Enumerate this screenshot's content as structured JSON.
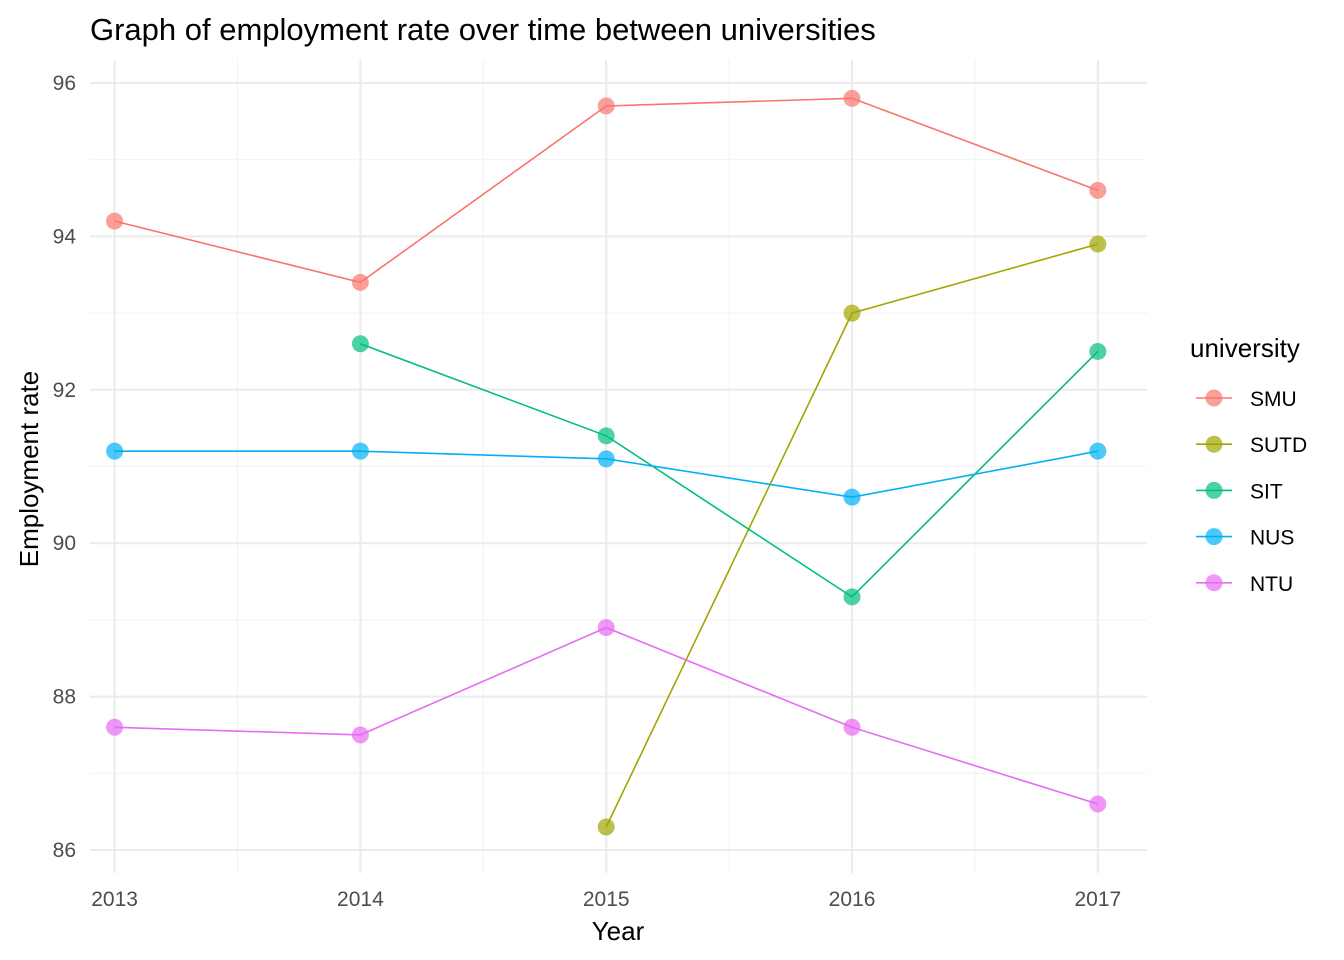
{
  "chart_data": {
    "type": "line",
    "title": "Graph of employment rate over time between universities",
    "xlabel": "Year",
    "ylabel": "Employment rate",
    "x": [
      2013,
      2014,
      2015,
      2016,
      2017
    ],
    "xlim": [
      2012.9,
      2017.2
    ],
    "ylim": [
      85.7,
      96.3
    ],
    "yticks": [
      86,
      88,
      90,
      92,
      94,
      96
    ],
    "grid": true,
    "legend": {
      "title": "university",
      "position": "right"
    },
    "series": [
      {
        "name": "SMU",
        "color": "#F8766D",
        "values": [
          94.2,
          93.4,
          95.7,
          95.8,
          94.6
        ]
      },
      {
        "name": "SUTD",
        "color": "#A3A500",
        "values": [
          null,
          null,
          86.3,
          93.0,
          93.9
        ]
      },
      {
        "name": "SIT",
        "color": "#00BF7D",
        "values": [
          null,
          92.6,
          91.4,
          89.3,
          92.5
        ]
      },
      {
        "name": "NUS",
        "color": "#00B0F6",
        "values": [
          91.2,
          91.2,
          91.1,
          90.6,
          91.2
        ]
      },
      {
        "name": "NTU",
        "color": "#E76BF3",
        "values": [
          87.6,
          87.5,
          88.9,
          87.6,
          86.6
        ]
      }
    ]
  }
}
